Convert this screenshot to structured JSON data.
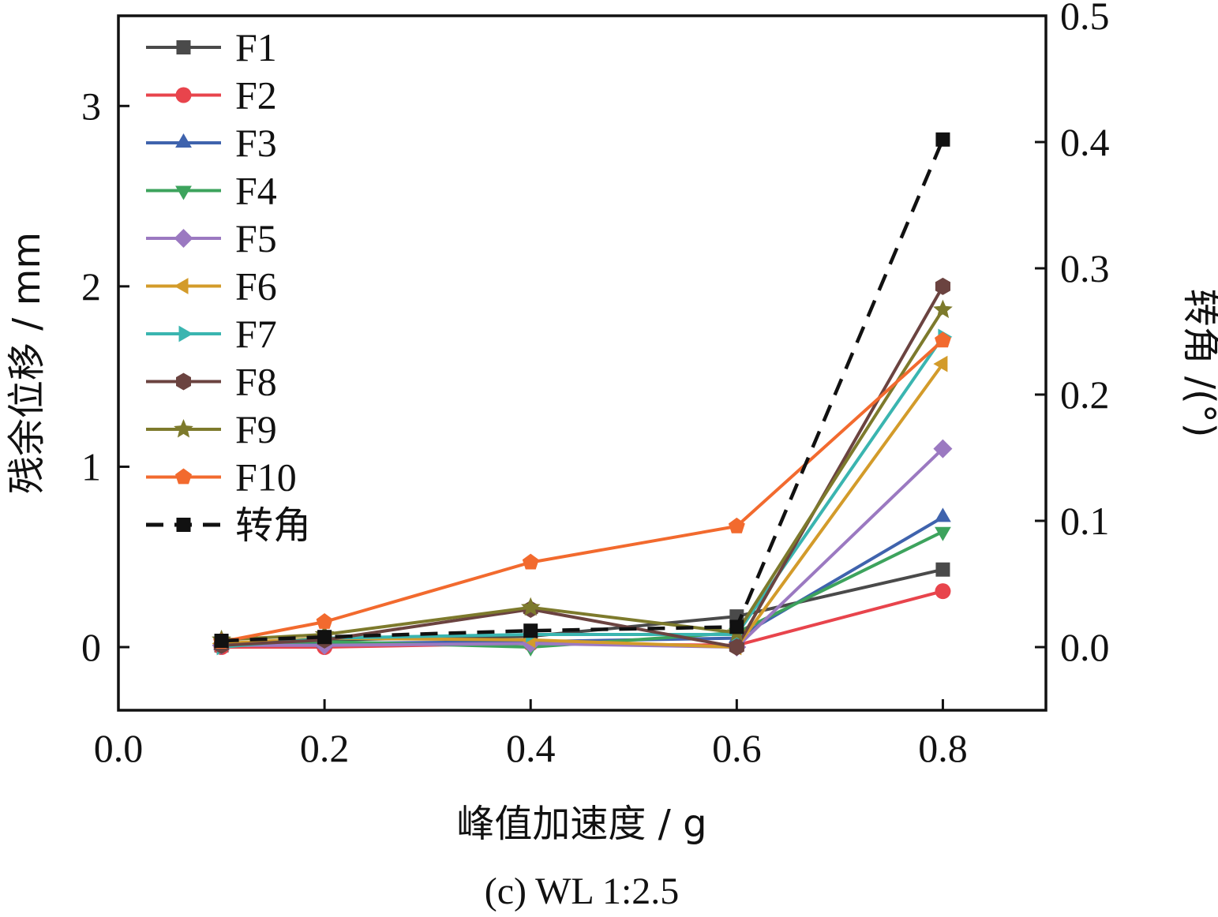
{
  "chart_data": {
    "type": "line",
    "caption": "(c) WL 1:2.5",
    "xlabel": "峰值加速度 / g",
    "ylabel": "残余位移 / mm",
    "y2label": "转角 /(°)",
    "xlim": [
      0.0,
      0.9
    ],
    "ylim": [
      -0.35,
      3.5
    ],
    "y2lim": [
      -0.05,
      0.5
    ],
    "x_ticks": [
      {
        "value": 0.0,
        "label": "0.0"
      },
      {
        "value": 0.2,
        "label": "0.2"
      },
      {
        "value": 0.4,
        "label": "0.4"
      },
      {
        "value": 0.6,
        "label": "0.6"
      },
      {
        "value": 0.8,
        "label": "0.8"
      }
    ],
    "y_ticks": [
      {
        "value": 0,
        "label": "0"
      },
      {
        "value": 1,
        "label": "1"
      },
      {
        "value": 2,
        "label": "2"
      },
      {
        "value": 3,
        "label": "3"
      }
    ],
    "y2_ticks": [
      {
        "value": 0.0,
        "label": "0.0"
      },
      {
        "value": 0.1,
        "label": "0.1"
      },
      {
        "value": 0.2,
        "label": "0.2"
      },
      {
        "value": 0.3,
        "label": "0.3"
      },
      {
        "value": 0.4,
        "label": "0.4"
      },
      {
        "value": 0.5,
        "label": "0.5"
      }
    ],
    "grid": false,
    "legend_position": "top-left",
    "x": [
      0.1,
      0.2,
      0.4,
      0.6,
      0.8
    ],
    "series": [
      {
        "name": "F1",
        "marker": "square",
        "color": "#4a4a4a",
        "axis": "left",
        "values": [
          0.01,
          0.04,
          0.06,
          0.17,
          0.43
        ]
      },
      {
        "name": "F2",
        "marker": "circle",
        "color": "#e8444c",
        "axis": "left",
        "values": [
          0.0,
          0.0,
          0.02,
          0.01,
          0.31
        ]
      },
      {
        "name": "F3",
        "marker": "triangle-up",
        "color": "#3f63ad",
        "axis": "left",
        "values": [
          0.01,
          0.02,
          0.03,
          0.05,
          0.72
        ]
      },
      {
        "name": "F4",
        "marker": "triangle-down",
        "color": "#3da35d",
        "axis": "left",
        "values": [
          0.02,
          0.03,
          0.0,
          0.08,
          0.64
        ]
      },
      {
        "name": "F5",
        "marker": "diamond",
        "color": "#9b79c1",
        "axis": "left",
        "values": [
          0.01,
          0.01,
          0.02,
          0.0,
          1.1
        ]
      },
      {
        "name": "F6",
        "marker": "triangle-left",
        "color": "#d39b2a",
        "axis": "left",
        "values": [
          0.02,
          0.05,
          0.04,
          0.0,
          1.57
        ]
      },
      {
        "name": "F7",
        "marker": "triangle-right",
        "color": "#3ab5b0",
        "axis": "left",
        "values": [
          0.0,
          0.05,
          0.07,
          0.07,
          1.72
        ]
      },
      {
        "name": "F8",
        "marker": "hexagon",
        "color": "#6b4340",
        "axis": "left",
        "values": [
          0.01,
          0.04,
          0.21,
          0.0,
          2.0
        ]
      },
      {
        "name": "F9",
        "marker": "star",
        "color": "#7d7a2c",
        "axis": "left",
        "values": [
          0.04,
          0.07,
          0.22,
          0.08,
          1.87
        ]
      },
      {
        "name": "F10",
        "marker": "pentagon",
        "color": "#f26a2e",
        "axis": "left",
        "values": [
          0.03,
          0.14,
          0.47,
          0.67,
          1.7
        ]
      },
      {
        "name": "转角",
        "marker": "square",
        "color": "#111111",
        "axis": "right",
        "dashed": true,
        "values": [
          0.005,
          0.008,
          0.013,
          0.016,
          0.402
        ]
      }
    ]
  }
}
